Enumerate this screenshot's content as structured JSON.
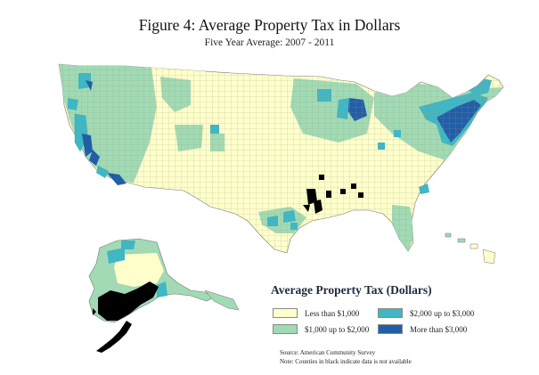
{
  "figure": {
    "title": "Figure 4: Average Property Tax in Dollars",
    "subtitle": "Five Year Average: 2007 - 2011"
  },
  "legend": {
    "title": "Average Property Tax (Dollars)",
    "items": [
      {
        "label": "Less than $1,000",
        "color": "#ffffcc"
      },
      {
        "label": "$2,000 up to $3,000",
        "color": "#41b6c4"
      },
      {
        "label": "$1,000 up to $2,000",
        "color": "#a1dab4"
      },
      {
        "label": "More than $3,000",
        "color": "#225ea8"
      }
    ]
  },
  "notes": {
    "source": "Source: American Community Survey",
    "note": "Note: Counties in black indicate data is not available"
  },
  "colors": {
    "less_than_1000": "#ffffcc",
    "1000_to_2000": "#a1dab4",
    "2000_to_3000": "#41b6c4",
    "more_than_3000": "#225ea8",
    "no_data": "#000000"
  }
}
